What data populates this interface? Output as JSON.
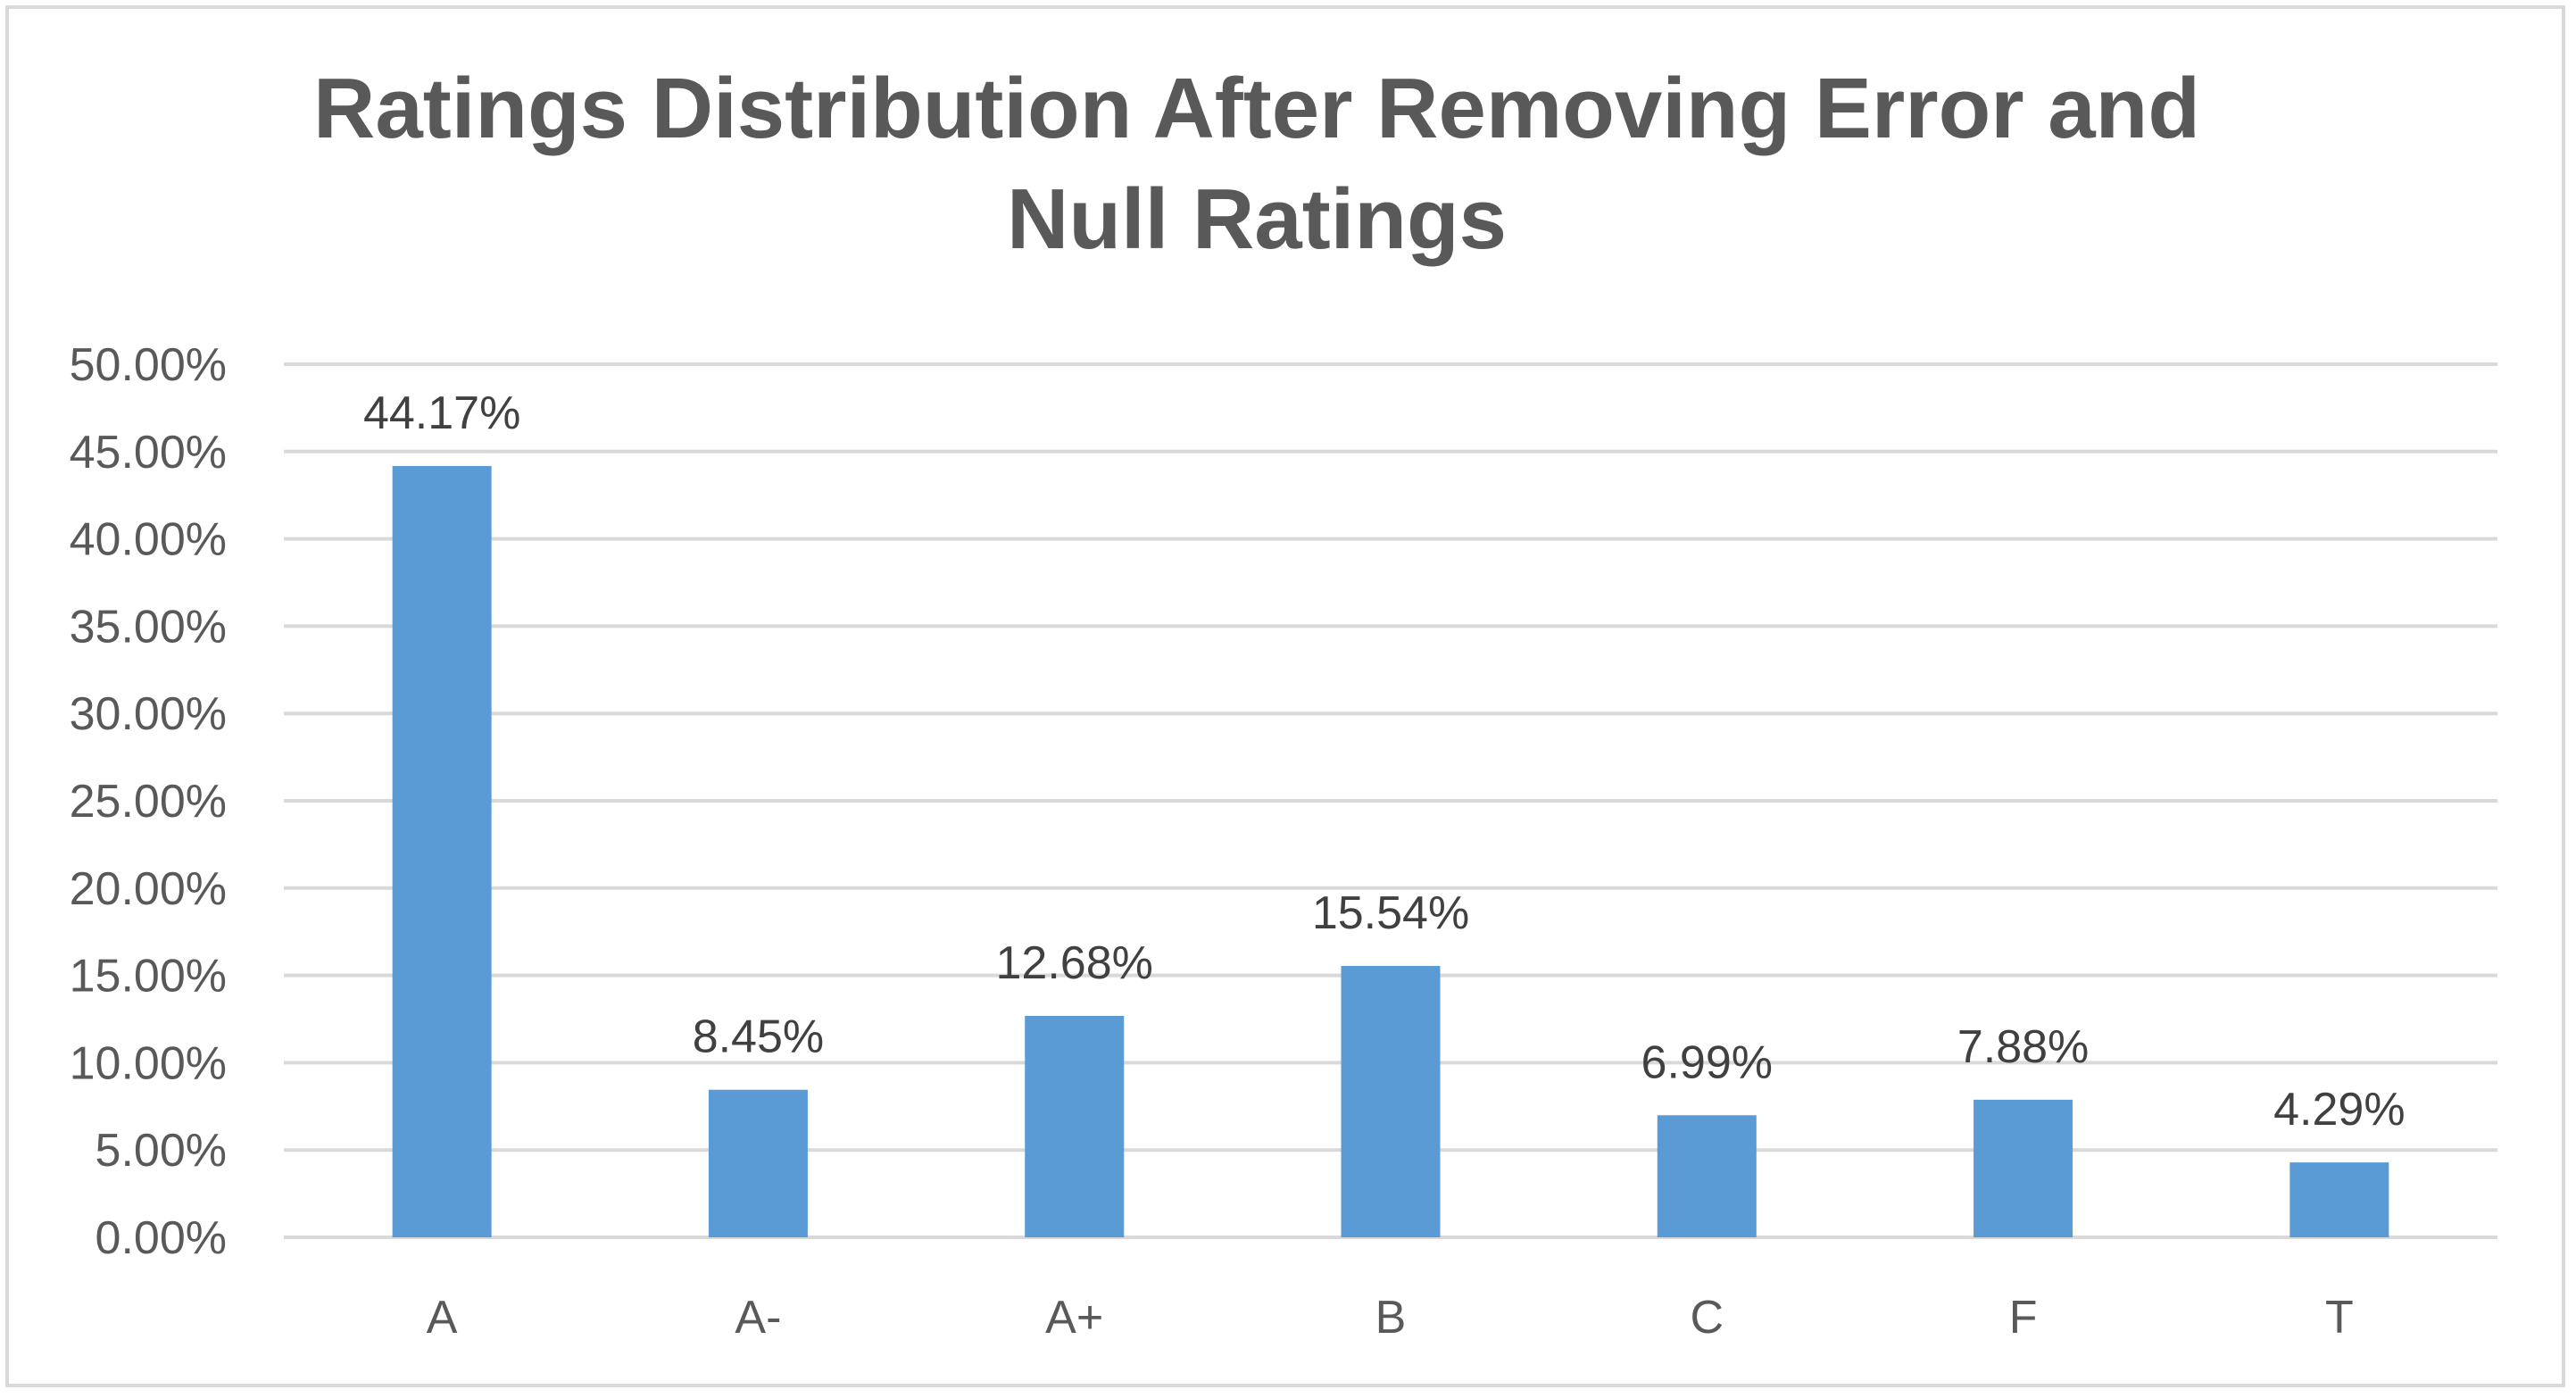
{
  "chart_data": {
    "type": "bar",
    "title": "Ratings Distribution After Removing Error and Null Ratings",
    "categories": [
      "A",
      "A-",
      "A+",
      "B",
      "C",
      "F",
      "T"
    ],
    "values": [
      44.17,
      8.45,
      12.68,
      15.54,
      6.99,
      7.88,
      4.29
    ],
    "data_labels": [
      "44.17%",
      "8.45%",
      "12.68%",
      "15.54%",
      "6.99%",
      "7.88%",
      "4.29%"
    ],
    "y_tick_labels": [
      "0.00%",
      "5.00%",
      "10.00%",
      "15.00%",
      "20.00%",
      "25.00%",
      "30.00%",
      "35.00%",
      "40.00%",
      "45.00%",
      "50.00%"
    ],
    "xlabel": "",
    "ylabel": "",
    "ylim": [
      0,
      50
    ],
    "y_step": 5,
    "grid": true,
    "legend": "none",
    "bar_color": "#5b9bd5",
    "grid_color": "#d9d9d9"
  }
}
